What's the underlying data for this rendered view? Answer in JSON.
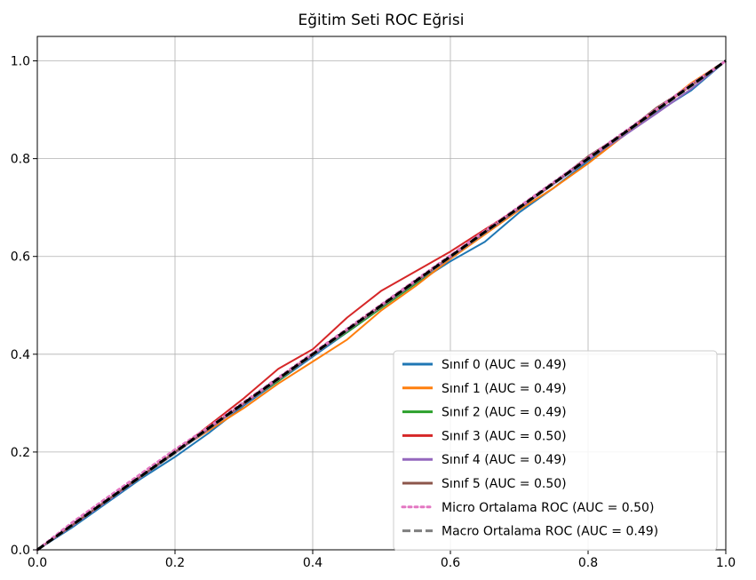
{
  "chart_data": {
    "type": "line",
    "title": "Eğitim Seti ROC Eğrisi",
    "xlabel": "",
    "ylabel": "",
    "xlim": [
      0.0,
      1.0
    ],
    "ylim": [
      0.0,
      1.05
    ],
    "xticks": [
      "0.0",
      "0.2",
      "0.4",
      "0.6",
      "0.8",
      "1.0"
    ],
    "yticks": [
      "0.0",
      "0.2",
      "0.4",
      "0.6",
      "0.8",
      "1.0"
    ],
    "grid": true,
    "legend_position": "lower-right",
    "series": [
      {
        "name": "Sınıf 0 (AUC = 0.49)",
        "color": "#1f77b4",
        "style": "solid",
        "x": [
          0,
          0.05,
          0.1,
          0.15,
          0.2,
          0.25,
          0.3,
          0.35,
          0.4,
          0.45,
          0.5,
          0.55,
          0.6,
          0.65,
          0.7,
          0.75,
          0.8,
          0.85,
          0.9,
          0.95,
          1.0
        ],
        "y": [
          0,
          0.045,
          0.095,
          0.145,
          0.19,
          0.24,
          0.295,
          0.345,
          0.395,
          0.445,
          0.495,
          0.545,
          0.59,
          0.63,
          0.69,
          0.74,
          0.795,
          0.845,
          0.895,
          0.94,
          1.0
        ]
      },
      {
        "name": "Sınıf 1 (AUC = 0.49)",
        "color": "#ff7f0e",
        "style": "solid",
        "x": [
          0,
          0.05,
          0.1,
          0.15,
          0.2,
          0.25,
          0.3,
          0.35,
          0.4,
          0.45,
          0.5,
          0.55,
          0.6,
          0.65,
          0.7,
          0.75,
          0.8,
          0.85,
          0.9,
          0.95,
          1.0
        ],
        "y": [
          0,
          0.05,
          0.1,
          0.15,
          0.2,
          0.245,
          0.29,
          0.34,
          0.385,
          0.43,
          0.49,
          0.54,
          0.595,
          0.645,
          0.695,
          0.74,
          0.79,
          0.845,
          0.9,
          0.955,
          1.0
        ]
      },
      {
        "name": "Sınıf 2 (AUC = 0.49)",
        "color": "#2ca02c",
        "style": "solid",
        "x": [
          0,
          0.05,
          0.1,
          0.15,
          0.2,
          0.25,
          0.3,
          0.35,
          0.4,
          0.45,
          0.5,
          0.55,
          0.6,
          0.65,
          0.7,
          0.75,
          0.8,
          0.85,
          0.9,
          0.95,
          1.0
        ],
        "y": [
          0,
          0.05,
          0.1,
          0.148,
          0.198,
          0.25,
          0.3,
          0.345,
          0.4,
          0.445,
          0.495,
          0.545,
          0.6,
          0.65,
          0.7,
          0.75,
          0.8,
          0.85,
          0.9,
          0.95,
          1.0
        ]
      },
      {
        "name": "Sınıf 3 (AUC = 0.50)",
        "color": "#d62728",
        "style": "solid",
        "x": [
          0,
          0.05,
          0.1,
          0.15,
          0.2,
          0.25,
          0.3,
          0.35,
          0.4,
          0.45,
          0.5,
          0.55,
          0.6,
          0.65,
          0.7,
          0.75,
          0.8,
          0.85,
          0.9,
          0.95,
          1.0
        ],
        "y": [
          0,
          0.05,
          0.1,
          0.15,
          0.2,
          0.255,
          0.31,
          0.37,
          0.41,
          0.475,
          0.53,
          0.57,
          0.61,
          0.655,
          0.7,
          0.75,
          0.8,
          0.85,
          0.9,
          0.95,
          1.0
        ]
      },
      {
        "name": "Sınıf 4 (AUC = 0.49)",
        "color": "#9467bd",
        "style": "solid",
        "x": [
          0,
          0.05,
          0.1,
          0.15,
          0.2,
          0.25,
          0.3,
          0.35,
          0.4,
          0.45,
          0.5,
          0.55,
          0.6,
          0.65,
          0.7,
          0.75,
          0.8,
          0.85,
          0.9,
          0.95,
          1.0
        ],
        "y": [
          0,
          0.048,
          0.098,
          0.148,
          0.198,
          0.248,
          0.298,
          0.348,
          0.398,
          0.448,
          0.498,
          0.548,
          0.598,
          0.648,
          0.698,
          0.748,
          0.798,
          0.845,
          0.893,
          0.943,
          1.0
        ]
      },
      {
        "name": "Sınıf 5 (AUC = 0.50)",
        "color": "#8c564b",
        "style": "solid",
        "x": [
          0,
          0.05,
          0.1,
          0.15,
          0.2,
          0.25,
          0.3,
          0.35,
          0.4,
          0.45,
          0.5,
          0.55,
          0.6,
          0.65,
          0.7,
          0.75,
          0.8,
          0.85,
          0.9,
          0.95,
          1.0
        ],
        "y": [
          0,
          0.05,
          0.1,
          0.15,
          0.2,
          0.25,
          0.3,
          0.35,
          0.4,
          0.45,
          0.5,
          0.55,
          0.6,
          0.65,
          0.7,
          0.75,
          0.805,
          0.85,
          0.905,
          0.95,
          1.0
        ]
      },
      {
        "name": "Micro Ortalama ROC (AUC = 0.50)",
        "color": "#e377c2",
        "style": "dotted",
        "x": [
          0,
          0.05,
          0.1,
          0.15,
          0.2,
          0.25,
          0.3,
          0.35,
          0.4,
          0.45,
          0.5,
          0.55,
          0.6,
          0.65,
          0.7,
          0.75,
          0.8,
          0.85,
          0.9,
          0.95,
          1.0
        ],
        "y": [
          0,
          0.055,
          0.105,
          0.155,
          0.205,
          0.252,
          0.302,
          0.352,
          0.402,
          0.452,
          0.502,
          0.552,
          0.602,
          0.652,
          0.702,
          0.752,
          0.802,
          0.852,
          0.902,
          0.952,
          1.0
        ]
      },
      {
        "name": "Macro Ortalama ROC (AUC = 0.49)",
        "color": "#7f7f7f",
        "style": "dashed",
        "x": [
          0,
          0.05,
          0.1,
          0.15,
          0.2,
          0.25,
          0.3,
          0.35,
          0.4,
          0.45,
          0.5,
          0.55,
          0.6,
          0.65,
          0.7,
          0.75,
          0.8,
          0.85,
          0.9,
          0.95,
          1.0
        ],
        "y": [
          0,
          0.049,
          0.099,
          0.149,
          0.198,
          0.249,
          0.299,
          0.349,
          0.399,
          0.449,
          0.499,
          0.549,
          0.599,
          0.649,
          0.699,
          0.749,
          0.799,
          0.849,
          0.899,
          0.949,
          1.0
        ]
      }
    ],
    "diagonal": {
      "color": "#000000",
      "style": "dashed",
      "x": [
        0,
        1
      ],
      "y": [
        0,
        1
      ]
    }
  }
}
